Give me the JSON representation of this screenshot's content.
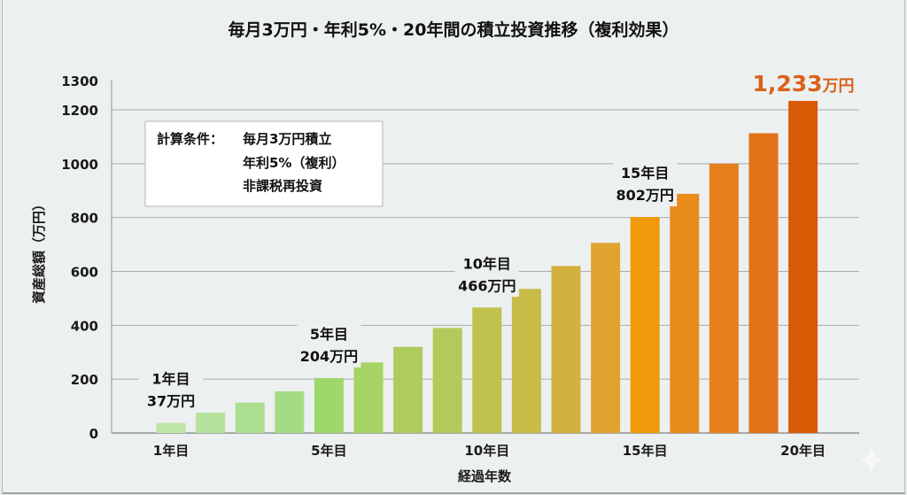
{
  "chart_data": {
    "type": "bar",
    "title": "毎月3万円・年利5%・20年間の積立投資推移（複利効果）",
    "xlabel": "経過年数",
    "ylabel": "資産総額（万円）",
    "ylim": [
      0,
      1300
    ],
    "yticks": [
      0,
      200,
      400,
      600,
      800,
      1000,
      1200,
      1300
    ],
    "grid": true,
    "x_tick_labels": [
      {
        "bar_index": 0,
        "label": "1年目"
      },
      {
        "bar_index": 4,
        "label": "5年目"
      },
      {
        "bar_index": 8,
        "label": "10年目"
      },
      {
        "bar_index": 12,
        "label": "15年目"
      },
      {
        "bar_index": 16,
        "label": "20年目"
      }
    ],
    "values": [
      37,
      76,
      113,
      155,
      204,
      262,
      320,
      390,
      466,
      535,
      620,
      706,
      802,
      888,
      1000,
      1113,
      1233
    ],
    "colors": [
      "#bde5a6",
      "#b6e39c",
      "#abdf8f",
      "#a4dc85",
      "#9dd96a",
      "#a5d464",
      "#aecc5e",
      "#b3c95a",
      "#bfc24f",
      "#c9bb48",
      "#d3b13f",
      "#dfa32f",
      "#ef9a0a",
      "#e98c1c",
      "#e7801c",
      "#e17218",
      "#da5a05"
    ],
    "annotations": [
      {
        "bar_index": 0,
        "line1": "1年目",
        "line2": "37万円"
      },
      {
        "bar_index": 4,
        "line1": "5年目",
        "line2": "204万円"
      },
      {
        "bar_index": 8,
        "line1": "10年目",
        "line2": "466万円"
      },
      {
        "bar_index": 12,
        "line1": "15年目",
        "line2": "802万円"
      }
    ],
    "final_label": {
      "bar_index": 16,
      "number": "1,233",
      "unit": "万円",
      "color": "#d9611a"
    },
    "conditions_box": {
      "heading": "計算条件：",
      "lines": [
        "毎月3万円積立",
        "年利5%（複利）",
        "非課税再投資"
      ]
    }
  },
  "decorations": {
    "corner_icon": "sparkle-icon"
  }
}
